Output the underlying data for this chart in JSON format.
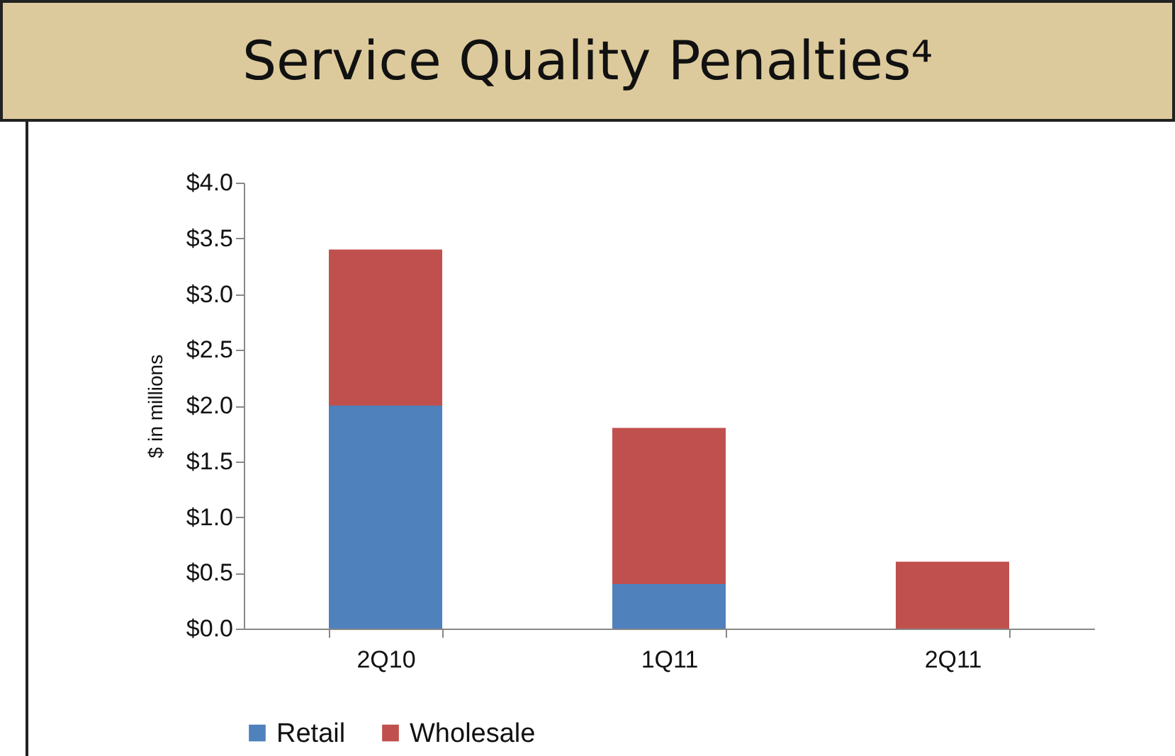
{
  "chart_data": {
    "type": "bar",
    "title": "Service Quality Penalties⁴",
    "ylabel": "$ in millions",
    "categories": [
      "2Q10",
      "1Q11",
      "2Q11"
    ],
    "stacked": true,
    "series": [
      {
        "name": "Retail",
        "color": "#4f81bd",
        "values": [
          2.0,
          0.4,
          0
        ]
      },
      {
        "name": "Wholesale",
        "color": "#c0504d",
        "values": [
          1.4,
          1.4,
          0.6
        ]
      }
    ],
    "ylim": [
      0,
      4
    ],
    "yticks": [
      {
        "value": 0,
        "label": "$0.0"
      },
      {
        "value": 0.5,
        "label": "$0.5"
      },
      {
        "value": 1,
        "label": "$1.0"
      },
      {
        "value": 1.5,
        "label": "$1.5"
      },
      {
        "value": 2,
        "label": "$2.0"
      },
      {
        "value": 2.5,
        "label": "$2.5"
      },
      {
        "value": 3,
        "label": "$3.0"
      },
      {
        "value": 3.5,
        "label": "$3.5"
      },
      {
        "value": 4,
        "label": "$4.0"
      }
    ],
    "grid": false,
    "legend": "bottom"
  }
}
